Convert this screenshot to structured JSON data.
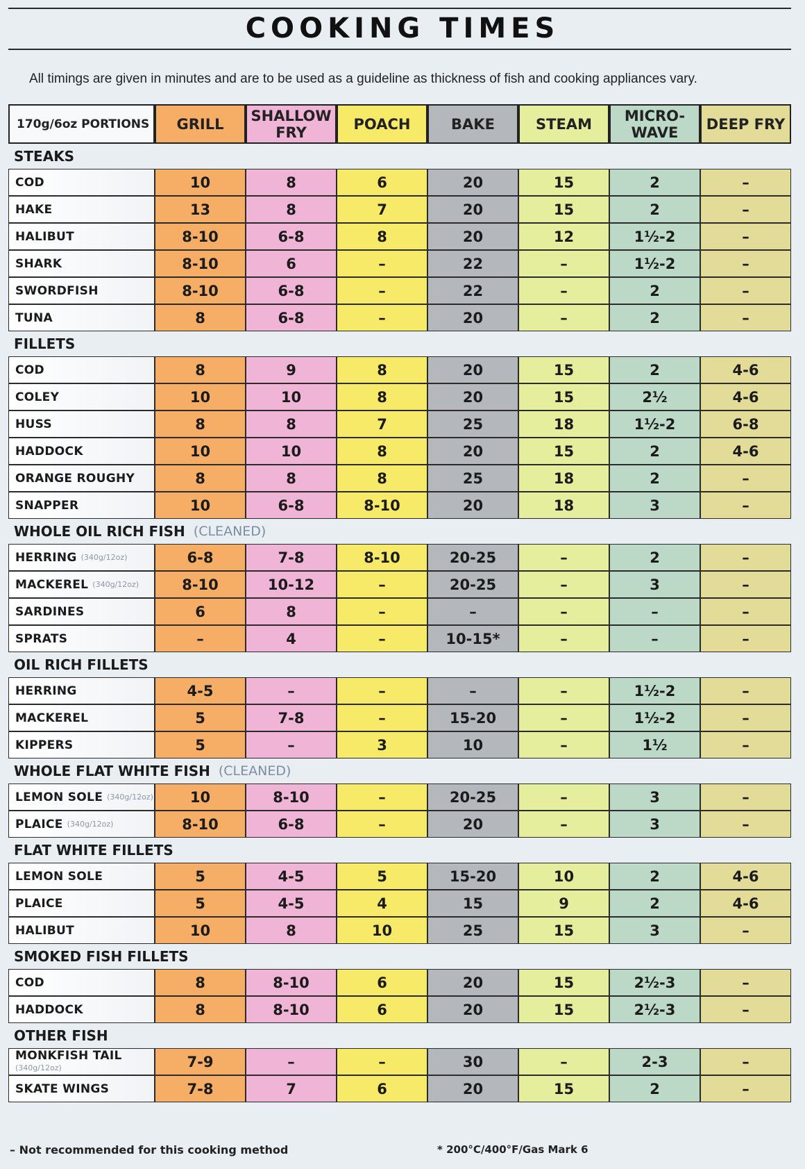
{
  "title": "COOKING TIMES",
  "intro": "All timings are given in minutes and are to be used as a guideline as thickness of fish and cooking appliances vary.",
  "header": [
    "170g/6oz PORTIONS",
    "GRILL",
    "SHALLOW FRY",
    "POACH",
    "BAKE",
    "STEAM",
    "MICRO-WAVE",
    "DEEP FRY"
  ],
  "column_colors": [
    "#f6ae66",
    "#f0b4d6",
    "#f8ea69",
    "#b4b8bc",
    "#e4ee9c",
    "#bcd9c8",
    "#e3dc98"
  ],
  "sections": [
    {
      "title": "STEAKS",
      "note": "",
      "rows": [
        {
          "name": "COD",
          "sub": "",
          "values": [
            "10",
            "8",
            "6",
            "20",
            "15",
            "2",
            "–"
          ]
        },
        {
          "name": "HAKE",
          "sub": "",
          "values": [
            "13",
            "8",
            "7",
            "20",
            "15",
            "2",
            "–"
          ]
        },
        {
          "name": "HALIBUT",
          "sub": "",
          "values": [
            "8-10",
            "6-8",
            "8",
            "20",
            "12",
            "1½-2",
            "–"
          ]
        },
        {
          "name": "SHARK",
          "sub": "",
          "values": [
            "8-10",
            "6",
            "–",
            "22",
            "–",
            "1½-2",
            "–"
          ]
        },
        {
          "name": "SWORDFISH",
          "sub": "",
          "values": [
            "8-10",
            "6-8",
            "–",
            "22",
            "–",
            "2",
            "–"
          ]
        },
        {
          "name": "TUNA",
          "sub": "",
          "values": [
            "8",
            "6-8",
            "–",
            "20",
            "–",
            "2",
            "–"
          ]
        }
      ]
    },
    {
      "title": "FILLETS",
      "note": "",
      "rows": [
        {
          "name": "COD",
          "sub": "",
          "values": [
            "8",
            "9",
            "8",
            "20",
            "15",
            "2",
            "4-6"
          ]
        },
        {
          "name": "COLEY",
          "sub": "",
          "values": [
            "10",
            "10",
            "8",
            "20",
            "15",
            "2½",
            "4-6"
          ]
        },
        {
          "name": "HUSS",
          "sub": "",
          "values": [
            "8",
            "8",
            "7",
            "25",
            "18",
            "1½-2",
            "6-8"
          ]
        },
        {
          "name": "HADDOCK",
          "sub": "",
          "values": [
            "10",
            "10",
            "8",
            "20",
            "15",
            "2",
            "4-6"
          ]
        },
        {
          "name": "ORANGE ROUGHY",
          "sub": "",
          "values": [
            "8",
            "8",
            "8",
            "25",
            "18",
            "2",
            "–"
          ]
        },
        {
          "name": "SNAPPER",
          "sub": "",
          "values": [
            "10",
            "6-8",
            "8-10",
            "20",
            "18",
            "3",
            "–"
          ]
        }
      ]
    },
    {
      "title": "WHOLE OIL RICH FISH",
      "note": "(CLEANED)",
      "rows": [
        {
          "name": "HERRING",
          "sub": "(340g/12oz)",
          "values": [
            "6-8",
            "7-8",
            "8-10",
            "20-25",
            "–",
            "2",
            "–"
          ]
        },
        {
          "name": "MACKEREL",
          "sub": "(340g/12oz)",
          "values": [
            "8-10",
            "10-12",
            "–",
            "20-25",
            "–",
            "3",
            "–"
          ]
        },
        {
          "name": "SARDINES",
          "sub": "",
          "values": [
            "6",
            "8",
            "–",
            "–",
            "–",
            "–",
            "–"
          ]
        },
        {
          "name": "SPRATS",
          "sub": "",
          "values": [
            "–",
            "4",
            "–",
            "10-15*",
            "–",
            "–",
            "–"
          ]
        }
      ]
    },
    {
      "title": "OIL RICH FILLETS",
      "note": "",
      "rows": [
        {
          "name": "HERRING",
          "sub": "",
          "values": [
            "4-5",
            "–",
            "–",
            "–",
            "–",
            "1½-2",
            "–"
          ]
        },
        {
          "name": "MACKEREL",
          "sub": "",
          "values": [
            "5",
            "7-8",
            "–",
            "15-20",
            "–",
            "1½-2",
            "–"
          ]
        },
        {
          "name": "KIPPERS",
          "sub": "",
          "values": [
            "5",
            "–",
            "3",
            "10",
            "–",
            "1½",
            "–"
          ]
        }
      ]
    },
    {
      "title": "WHOLE FLAT WHITE FISH",
      "note": "(CLEANED)",
      "rows": [
        {
          "name": "LEMON SOLE",
          "sub": "(340g/12oz)",
          "values": [
            "10",
            "8-10",
            "–",
            "20-25",
            "–",
            "3",
            "–"
          ]
        },
        {
          "name": "PLAICE",
          "sub": "(340g/12oz)",
          "values": [
            "8-10",
            "6-8",
            "–",
            "20",
            "–",
            "3",
            "–"
          ]
        }
      ]
    },
    {
      "title": "FLAT WHITE FILLETS",
      "note": "",
      "rows": [
        {
          "name": "LEMON SOLE",
          "sub": "",
          "values": [
            "5",
            "4-5",
            "5",
            "15-20",
            "10",
            "2",
            "4-6"
          ]
        },
        {
          "name": "PLAICE",
          "sub": "",
          "values": [
            "5",
            "4-5",
            "4",
            "15",
            "9",
            "2",
            "4-6"
          ]
        },
        {
          "name": "HALIBUT",
          "sub": "",
          "values": [
            "10",
            "8",
            "10",
            "25",
            "15",
            "3",
            "–"
          ]
        }
      ]
    },
    {
      "title": "SMOKED FISH FILLETS",
      "note": "",
      "rows": [
        {
          "name": "COD",
          "sub": "",
          "values": [
            "8",
            "8-10",
            "6",
            "20",
            "15",
            "2½-3",
            "–"
          ]
        },
        {
          "name": "HADDOCK",
          "sub": "",
          "values": [
            "8",
            "8-10",
            "6",
            "20",
            "15",
            "2½-3",
            "–"
          ]
        }
      ]
    },
    {
      "title": "OTHER FISH",
      "note": "",
      "rows": [
        {
          "name": "MONKFISH TAIL",
          "sub": "(340g/12oz)",
          "tall": true,
          "values": [
            "7-9",
            "–",
            "–",
            "30",
            "–",
            "2-3",
            "–"
          ]
        },
        {
          "name": "SKATE WINGS",
          "sub": "",
          "values": [
            "7-8",
            "7",
            "6",
            "20",
            "15",
            "2",
            "–"
          ]
        }
      ]
    }
  ],
  "footer": {
    "left": "– Not recommended for this cooking method",
    "right": "* 200°C/400°F/Gas Mark 6"
  }
}
